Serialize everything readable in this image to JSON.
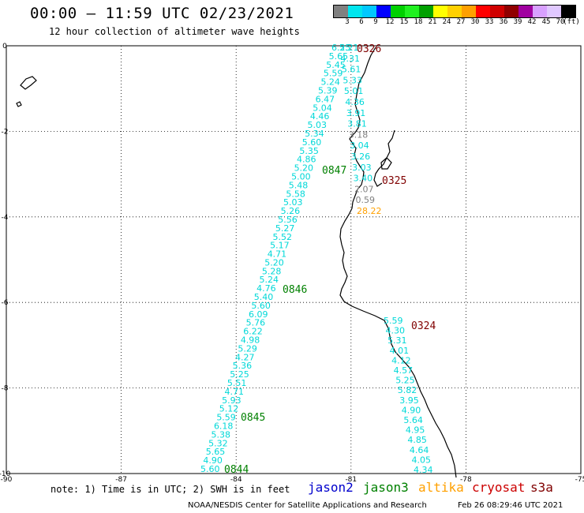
{
  "header": {
    "title": "00:00 – 11:59 UTC 02/23/2021",
    "subtitle": "12 hour collection of altimeter wave heights"
  },
  "colorbar": {
    "colors": [
      "#808080",
      "#00e5ee",
      "#00c8ff",
      "#0000ff",
      "#00d000",
      "#20f020",
      "#00a000",
      "#ffff00",
      "#ffd000",
      "#ffa000",
      "#ff0000",
      "#d00000",
      "#900000",
      "#a000a0",
      "#d8a0ff",
      "#e0c8ff",
      "#000000"
    ],
    "labels": [
      "3",
      "6",
      "9",
      "12",
      "15",
      "18",
      "21",
      "24",
      "27",
      "30",
      "33",
      "36",
      "39",
      "42",
      "45",
      "70",
      "(ft)"
    ]
  },
  "axes": {
    "x_ticks": [
      "-90",
      "-87",
      "-84",
      "-81",
      "-78",
      "-75"
    ],
    "y_ticks": [
      "0",
      "-2",
      "-4",
      "-6",
      "-8",
      "-10"
    ]
  },
  "track1": {
    "color": "#00d8d8",
    "values": [
      "6.25",
      "5.65",
      "5.45",
      "5.59",
      "5.24",
      "5.39",
      "6.47",
      "5.04",
      "4.46",
      "5.03",
      "5.34",
      "5.60",
      "5.35",
      "4.86",
      "5.20",
      "5.00",
      "5.48",
      "5.58",
      "5.03",
      "5.26",
      "5.56",
      "5.27",
      "5.52",
      "5.17",
      "4.71",
      "5.20",
      "5.28",
      "5.24",
      "4.76",
      "5.40",
      "5.60",
      "6.09",
      "5.76",
      "6.22",
      "4.98",
      "5.29",
      "4.27",
      "5.36",
      "5.25",
      "5.51",
      "4.71",
      "5.93",
      "5.12",
      "5.59",
      "6.18",
      "5.38",
      "5.32",
      "5.65",
      "4.90",
      "5.60"
    ]
  },
  "track2": {
    "values": [
      {
        "v": "5.21",
        "c": "#00d8d8"
      },
      {
        "v": "4.31",
        "c": "#00d8d8"
      },
      {
        "v": "5.61",
        "c": "#00d8d8"
      },
      {
        "v": "5.33",
        "c": "#00d8d8"
      },
      {
        "v": "5.01",
        "c": "#00d8d8"
      },
      {
        "v": "4.36",
        "c": "#00d8d8"
      },
      {
        "v": "3.91",
        "c": "#00d8d8"
      },
      {
        "v": "3.81",
        "c": "#00d8d8"
      },
      {
        "v": "3.18",
        "c": "#808080"
      },
      {
        "v": "3.04",
        "c": "#00d8d8"
      },
      {
        "v": "3.26",
        "c": "#00d8d8"
      },
      {
        "v": "3.03",
        "c": "#00d8d8"
      },
      {
        "v": "3.40",
        "c": "#00d8d8"
      },
      {
        "v": "2.07",
        "c": "#808080"
      },
      {
        "v": "0.59",
        "c": "#808080"
      },
      {
        "v": "28.22",
        "c": "#ffa000"
      }
    ]
  },
  "track3": {
    "color": "#00d8d8",
    "values": [
      "5.59",
      "4.30",
      "5.31",
      "4.01",
      "4.12",
      "4.57",
      "5.25",
      "5.82",
      "3.95",
      "4.90",
      "5.64",
      "4.95",
      "4.85",
      "4.64",
      "4.05",
      "4.34"
    ]
  },
  "time_labels": [
    {
      "text": "0326",
      "color": "#800000"
    },
    {
      "text": "0847",
      "color": "#008000"
    },
    {
      "text": "0325",
      "color": "#800000"
    },
    {
      "text": "0846",
      "color": "#008000"
    },
    {
      "text": "0324",
      "color": "#800000"
    },
    {
      "text": "0845",
      "color": "#008000"
    },
    {
      "text": "0844",
      "color": "#008000"
    }
  ],
  "footer": {
    "note": "note: 1) Time is in UTC; 2) SWH is in feet",
    "legend": [
      {
        "name": "jason2",
        "color": "#0000cc"
      },
      {
        "name": "jason3",
        "color": "#008000"
      },
      {
        "name": "altika",
        "color": "#ffa000"
      },
      {
        "name": "cryosat",
        "color": "#cc0000"
      },
      {
        "name": "s3a",
        "color": "#800000"
      }
    ],
    "credit": "NOAA/NESDIS Center for Satellite Applications and Research",
    "timestamp": "Feb 26 08:29:46 UTC 2021"
  }
}
